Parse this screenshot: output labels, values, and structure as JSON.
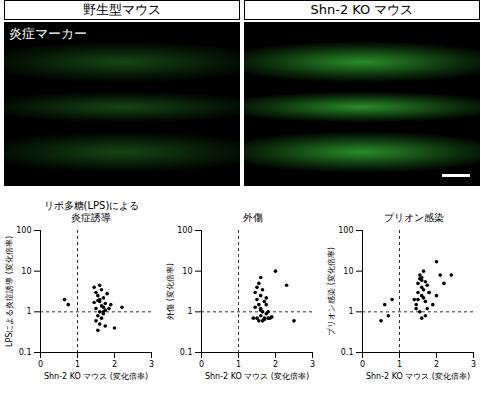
{
  "micrographs": {
    "labels": [
      "野生型マウス",
      "Shn-2 KO マウス"
    ],
    "marker_label": "炎症マーカー"
  },
  "chart_data": [
    {
      "type": "scatter",
      "title": "リポ多糖(LPS)による\n炎症誘導",
      "x_label": "Shn-2 KO マウス (変化倍率)",
      "y_label": "LPSによる炎症誘導 (変化倍率)",
      "x": [
        0.65,
        0.75,
        1.45,
        1.5,
        1.5,
        1.55,
        1.55,
        1.6,
        1.6,
        1.6,
        1.65,
        1.65,
        1.7,
        1.7,
        1.75,
        1.75,
        1.8,
        1.5,
        1.55,
        1.6,
        1.65,
        1.7,
        1.45,
        1.6,
        1.75,
        1.85,
        2.0,
        2.2,
        1.9,
        1.55,
        1.7
      ],
      "values": [
        2.0,
        1.5,
        4.0,
        3.0,
        1.2,
        2.5,
        0.8,
        4.5,
        1.8,
        1.0,
        3.5,
        1.4,
        2.2,
        0.9,
        1.6,
        1.1,
        2.8,
        0.6,
        0.35,
        0.5,
        0.7,
        1.3,
        1.7,
        2.0,
        0.45,
        1.2,
        0.4,
        1.3,
        1.5,
        1.9,
        1.0
      ],
      "xlim": [
        0,
        3
      ],
      "xticks": [
        0,
        1,
        2,
        3
      ],
      "ylim": [
        0.1,
        100
      ],
      "yticks": [
        0.1,
        1,
        10,
        100
      ],
      "log": "y",
      "reference_lines": {
        "x": 1,
        "y": 1
      },
      "color": "#000000",
      "marker": "circle",
      "grid": false
    },
    {
      "type": "scatter",
      "title": "外傷",
      "x_label": "Shn-2 KO マウス (変化倍率)",
      "y_label": "外傷 (変化倍率)",
      "x": [
        1.4,
        1.45,
        1.5,
        1.5,
        1.55,
        1.55,
        1.6,
        1.6,
        1.6,
        1.65,
        1.65,
        1.7,
        1.7,
        1.75,
        1.75,
        1.8,
        1.45,
        1.5,
        1.55,
        1.6,
        1.65,
        1.7,
        1.75,
        1.8,
        1.85,
        1.9,
        2.0,
        2.3,
        2.5,
        1.6
      ],
      "values": [
        0.7,
        3.0,
        2.0,
        0.7,
        5.0,
        1.5,
        2.5,
        0.8,
        1.2,
        3.5,
        0.6,
        1.8,
        0.7,
        2.2,
        0.9,
        1.0,
        1.3,
        4.0,
        0.6,
        7.0,
        1.0,
        0.65,
        1.5,
        0.7,
        0.7,
        0.75,
        10,
        4.5,
        0.6,
        1.1
      ],
      "xlim": [
        0,
        3
      ],
      "xticks": [
        0,
        1,
        2,
        3
      ],
      "ylim": [
        0.1,
        100
      ],
      "yticks": [
        0.1,
        1,
        10,
        100
      ],
      "log": "y",
      "reference_lines": {
        "x": 1,
        "y": 1
      },
      "color": "#000000",
      "marker": "circle",
      "grid": false
    },
    {
      "type": "scatter",
      "title": "プリオン感染",
      "x_label": "Shn-2 KO マウス (変化倍率)",
      "y_label": "プリオン感染 (変化倍率)",
      "x": [
        0.5,
        0.6,
        0.7,
        0.8,
        1.4,
        1.45,
        1.5,
        1.5,
        1.55,
        1.55,
        1.6,
        1.6,
        1.6,
        1.65,
        1.65,
        1.7,
        1.7,
        1.75,
        1.75,
        1.8,
        1.45,
        1.5,
        1.55,
        1.6,
        1.65,
        1.7,
        1.8,
        1.9,
        2.0,
        2.0,
        2.1,
        2.2,
        2.4,
        1.6
      ],
      "values": [
        0.6,
        1.5,
        0.8,
        2.0,
        2.0,
        1.5,
        5.0,
        3.0,
        8.0,
        1.0,
        4.0,
        2.5,
        6.0,
        10,
        3.5,
        1.8,
        0.8,
        4.5,
        1.2,
        3.0,
        1.2,
        2.0,
        6.5,
        7.0,
        2.2,
        5.5,
        3.0,
        1.5,
        17,
        2.5,
        8.0,
        5.0,
        8.0,
        0.7
      ],
      "xlim": [
        0,
        3
      ],
      "xticks": [
        0,
        1,
        2,
        3
      ],
      "ylim": [
        0.1,
        100
      ],
      "yticks": [
        0.1,
        1,
        10,
        100
      ],
      "log": "y",
      "reference_lines": {
        "x": 1,
        "y": 1
      },
      "color": "#000000",
      "marker": "circle",
      "grid": false
    }
  ]
}
